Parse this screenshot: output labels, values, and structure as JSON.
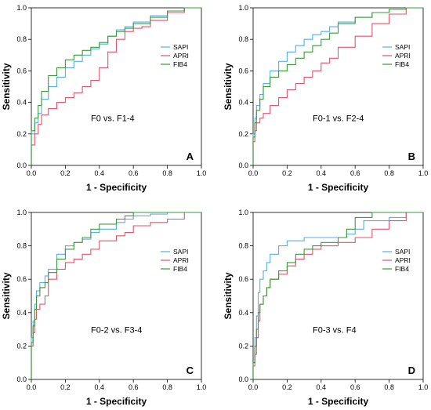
{
  "figure": {
    "axis_labels": {
      "x": "1 - Specificity",
      "y": "Sensitivity"
    },
    "ticks": [
      "0.0",
      "0.2",
      "0.4",
      "0.6",
      "0.8",
      "1.0"
    ]
  },
  "colors": {
    "SAPI": "#5aaee8",
    "APRI": "#e0546e",
    "FIB4": "#3c9a3c"
  },
  "chart_data": [
    {
      "type": "line",
      "panel": "A",
      "title": "F0 vs. F1-4",
      "xlabel": "1 - Specificity",
      "ylabel": "Sensitivity",
      "xlim": [
        0,
        1
      ],
      "ylim": [
        0,
        1
      ],
      "legend": "right",
      "series": [
        {
          "name": "SAPI",
          "x": [
            0,
            0.02,
            0.04,
            0.06,
            0.1,
            0.15,
            0.2,
            0.25,
            0.3,
            0.35,
            0.4,
            0.45,
            0.5,
            0.55,
            0.6,
            0.7,
            0.8,
            0.9,
            1.0
          ],
          "y": [
            0,
            0.2,
            0.27,
            0.33,
            0.42,
            0.5,
            0.56,
            0.62,
            0.66,
            0.7,
            0.74,
            0.77,
            0.82,
            0.86,
            0.88,
            0.91,
            0.95,
            0.98,
            1.0
          ]
        },
        {
          "name": "APRI",
          "x": [
            0,
            0.02,
            0.04,
            0.06,
            0.1,
            0.15,
            0.2,
            0.25,
            0.3,
            0.35,
            0.4,
            0.45,
            0.5,
            0.55,
            0.6,
            0.65,
            0.7,
            0.8,
            0.9,
            1.0
          ],
          "y": [
            0,
            0.13,
            0.2,
            0.26,
            0.32,
            0.36,
            0.4,
            0.43,
            0.46,
            0.5,
            0.54,
            0.62,
            0.72,
            0.8,
            0.85,
            0.87,
            0.88,
            0.92,
            0.97,
            1.0
          ]
        },
        {
          "name": "FIB4",
          "x": [
            0,
            0.02,
            0.04,
            0.06,
            0.1,
            0.15,
            0.2,
            0.25,
            0.3,
            0.35,
            0.4,
            0.45,
            0.5,
            0.55,
            0.6,
            0.7,
            0.8,
            0.9,
            1.0
          ],
          "y": [
            0,
            0.22,
            0.3,
            0.38,
            0.47,
            0.57,
            0.62,
            0.67,
            0.7,
            0.73,
            0.75,
            0.78,
            0.82,
            0.85,
            0.87,
            0.9,
            0.94,
            0.98,
            1.0
          ]
        }
      ]
    },
    {
      "type": "line",
      "panel": "B",
      "title": "F0-1 vs. F2-4",
      "xlabel": "1 - Specificity",
      "ylabel": "Sensitivity",
      "xlim": [
        0,
        1
      ],
      "ylim": [
        0,
        1
      ],
      "legend": "right",
      "series": [
        {
          "name": "SAPI",
          "x": [
            0,
            0.01,
            0.02,
            0.04,
            0.06,
            0.1,
            0.15,
            0.2,
            0.25,
            0.3,
            0.35,
            0.4,
            0.45,
            0.5,
            0.6,
            0.7,
            0.8,
            0.9,
            1.0
          ],
          "y": [
            0,
            0.2,
            0.3,
            0.38,
            0.45,
            0.52,
            0.6,
            0.66,
            0.72,
            0.76,
            0.8,
            0.83,
            0.85,
            0.88,
            0.91,
            0.94,
            0.97,
            0.99,
            1.0
          ]
        },
        {
          "name": "APRI",
          "x": [
            0,
            0.01,
            0.02,
            0.04,
            0.06,
            0.1,
            0.15,
            0.2,
            0.25,
            0.3,
            0.35,
            0.4,
            0.45,
            0.5,
            0.6,
            0.7,
            0.8,
            0.9,
            1.0
          ],
          "y": [
            0,
            0.15,
            0.22,
            0.27,
            0.3,
            0.33,
            0.38,
            0.43,
            0.48,
            0.52,
            0.56,
            0.6,
            0.65,
            0.68,
            0.75,
            0.82,
            0.9,
            0.96,
            1.0
          ]
        },
        {
          "name": "FIB4",
          "x": [
            0,
            0.01,
            0.02,
            0.04,
            0.06,
            0.1,
            0.15,
            0.2,
            0.25,
            0.3,
            0.35,
            0.4,
            0.45,
            0.5,
            0.6,
            0.7,
            0.8,
            0.9,
            1.0
          ],
          "y": [
            0,
            0.18,
            0.27,
            0.35,
            0.42,
            0.5,
            0.56,
            0.6,
            0.64,
            0.68,
            0.72,
            0.76,
            0.8,
            0.84,
            0.9,
            0.94,
            0.97,
            0.99,
            1.0
          ]
        }
      ]
    },
    {
      "type": "line",
      "panel": "C",
      "title": "F0-2 vs. F3-4",
      "xlabel": "1 - Specificity",
      "ylabel": "Sensitivity",
      "xlim": [
        0,
        1
      ],
      "ylim": [
        0,
        1
      ],
      "legend": "right",
      "series": [
        {
          "name": "SAPI",
          "x": [
            0,
            0.01,
            0.02,
            0.03,
            0.05,
            0.08,
            0.1,
            0.15,
            0.2,
            0.25,
            0.3,
            0.35,
            0.4,
            0.5,
            0.55,
            0.6,
            0.7,
            0.8,
            0.9,
            1.0
          ],
          "y": [
            0,
            0.25,
            0.35,
            0.45,
            0.53,
            0.58,
            0.62,
            0.66,
            0.75,
            0.8,
            0.82,
            0.84,
            0.88,
            0.9,
            0.94,
            0.96,
            0.98,
            0.99,
            1.0,
            1.0
          ]
        },
        {
          "name": "APRI",
          "x": [
            0,
            0.01,
            0.02,
            0.03,
            0.05,
            0.08,
            0.1,
            0.15,
            0.2,
            0.25,
            0.3,
            0.35,
            0.4,
            0.5,
            0.55,
            0.6,
            0.7,
            0.8,
            0.9,
            1.0
          ],
          "y": [
            0,
            0.2,
            0.28,
            0.36,
            0.42,
            0.45,
            0.5,
            0.6,
            0.66,
            0.7,
            0.72,
            0.75,
            0.78,
            0.83,
            0.86,
            0.88,
            0.92,
            0.94,
            0.96,
            1.0
          ]
        },
        {
          "name": "FIB4",
          "x": [
            0,
            0.01,
            0.02,
            0.03,
            0.05,
            0.08,
            0.1,
            0.15,
            0.2,
            0.25,
            0.3,
            0.35,
            0.4,
            0.5,
            0.55,
            0.6,
            0.7,
            0.8,
            0.9,
            1.0
          ],
          "y": [
            0,
            0.22,
            0.32,
            0.42,
            0.5,
            0.55,
            0.58,
            0.64,
            0.72,
            0.78,
            0.82,
            0.85,
            0.9,
            0.93,
            0.96,
            0.98,
            1.0,
            1.0,
            1.0,
            1.0
          ]
        }
      ]
    },
    {
      "type": "line",
      "panel": "D",
      "title": "F0-3 vs. F4",
      "xlabel": "1 - Specificity",
      "ylabel": "Sensitivity",
      "xlim": [
        0,
        1
      ],
      "ylim": [
        0,
        1
      ],
      "legend": "right",
      "series": [
        {
          "name": "SAPI",
          "x": [
            0,
            0.01,
            0.02,
            0.03,
            0.04,
            0.06,
            0.08,
            0.1,
            0.15,
            0.2,
            0.3,
            0.35,
            0.45,
            0.55,
            0.6,
            0.65,
            0.8,
            0.9,
            1.0
          ],
          "y": [
            0,
            0.1,
            0.25,
            0.38,
            0.52,
            0.6,
            0.65,
            0.7,
            0.75,
            0.8,
            0.83,
            0.85,
            0.85,
            0.85,
            0.87,
            0.9,
            0.95,
            0.97,
            1.0
          ]
        },
        {
          "name": "APRI",
          "x": [
            0,
            0.01,
            0.02,
            0.03,
            0.04,
            0.06,
            0.08,
            0.1,
            0.15,
            0.2,
            0.25,
            0.3,
            0.35,
            0.4,
            0.5,
            0.6,
            0.7,
            0.8,
            0.9,
            1.0
          ],
          "y": [
            0,
            0.08,
            0.15,
            0.25,
            0.35,
            0.45,
            0.5,
            0.55,
            0.6,
            0.63,
            0.68,
            0.72,
            0.75,
            0.78,
            0.8,
            0.82,
            0.85,
            0.9,
            0.95,
            1.0
          ]
        },
        {
          "name": "FIB4",
          "x": [
            0,
            0.01,
            0.02,
            0.03,
            0.04,
            0.06,
            0.08,
            0.1,
            0.15,
            0.2,
            0.25,
            0.3,
            0.35,
            0.4,
            0.5,
            0.55,
            0.6,
            0.7,
            0.8,
            1.0
          ],
          "y": [
            0,
            0.1,
            0.2,
            0.3,
            0.4,
            0.45,
            0.5,
            0.55,
            0.6,
            0.65,
            0.7,
            0.75,
            0.78,
            0.8,
            0.82,
            0.85,
            0.9,
            0.97,
            1.0,
            1.0
          ]
        }
      ]
    }
  ]
}
